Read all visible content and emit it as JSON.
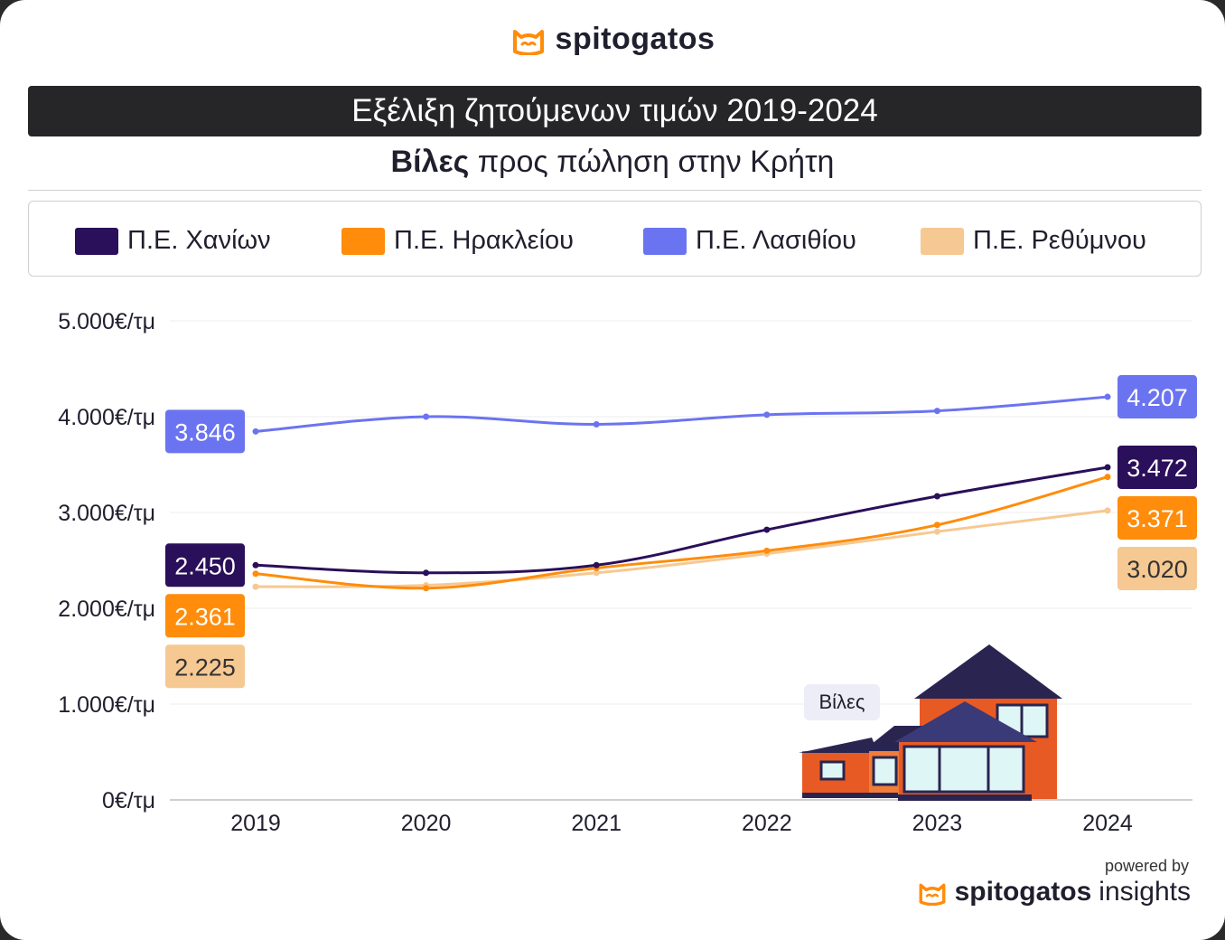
{
  "brand": {
    "name": "spitogatos",
    "powered_by": "powered by",
    "footer_brand": "spitogatos",
    "footer_suffix": "insights"
  },
  "header": {
    "title": "Εξέλιξη ζητούμενων τιμών 2019-2024",
    "subtitle_bold": "Βίλες",
    "subtitle_rest": " προς πώληση στην Κρήτη"
  },
  "illustration": {
    "label": "Βίλες"
  },
  "chart_data": {
    "type": "line",
    "x": [
      "2019",
      "2020",
      "2021",
      "2022",
      "2023",
      "2024"
    ],
    "ylim": [
      0,
      5000
    ],
    "y_ticks": [
      0,
      1000,
      2000,
      3000,
      4000,
      5000
    ],
    "y_tick_labels": [
      "0€/τμ",
      "1.000€/τμ",
      "2.000€/τμ",
      "3.000€/τμ",
      "4.000€/τμ",
      "5.000€/τμ"
    ],
    "legend_position": "top",
    "grid": true,
    "series": [
      {
        "name": "Π.Ε. Χανίων",
        "color": "#2a0f5a",
        "text_color": "#ffffff",
        "values": [
          2450,
          2370,
          2450,
          2820,
          3170,
          3472
        ],
        "start_label": "2.450",
        "end_label": "3.472"
      },
      {
        "name": "Π.Ε. Ηρακλείου",
        "color": "#ff8c0a",
        "text_color": "#ffffff",
        "values": [
          2361,
          2210,
          2420,
          2600,
          2870,
          3371
        ],
        "start_label": "2.361",
        "end_label": "3.371"
      },
      {
        "name": "Π.Ε. Λασιθίου",
        "color": "#6b74f0",
        "text_color": "#ffffff",
        "values": [
          3846,
          4000,
          3920,
          4020,
          4060,
          4207
        ],
        "start_label": "3.846",
        "end_label": "4.207"
      },
      {
        "name": "Π.Ε. Ρεθύμνου",
        "color": "#f6c892",
        "text_color": "#333333",
        "values": [
          2225,
          2240,
          2370,
          2570,
          2800,
          3020
        ],
        "start_label": "2.225",
        "end_label": "3.020"
      }
    ]
  }
}
